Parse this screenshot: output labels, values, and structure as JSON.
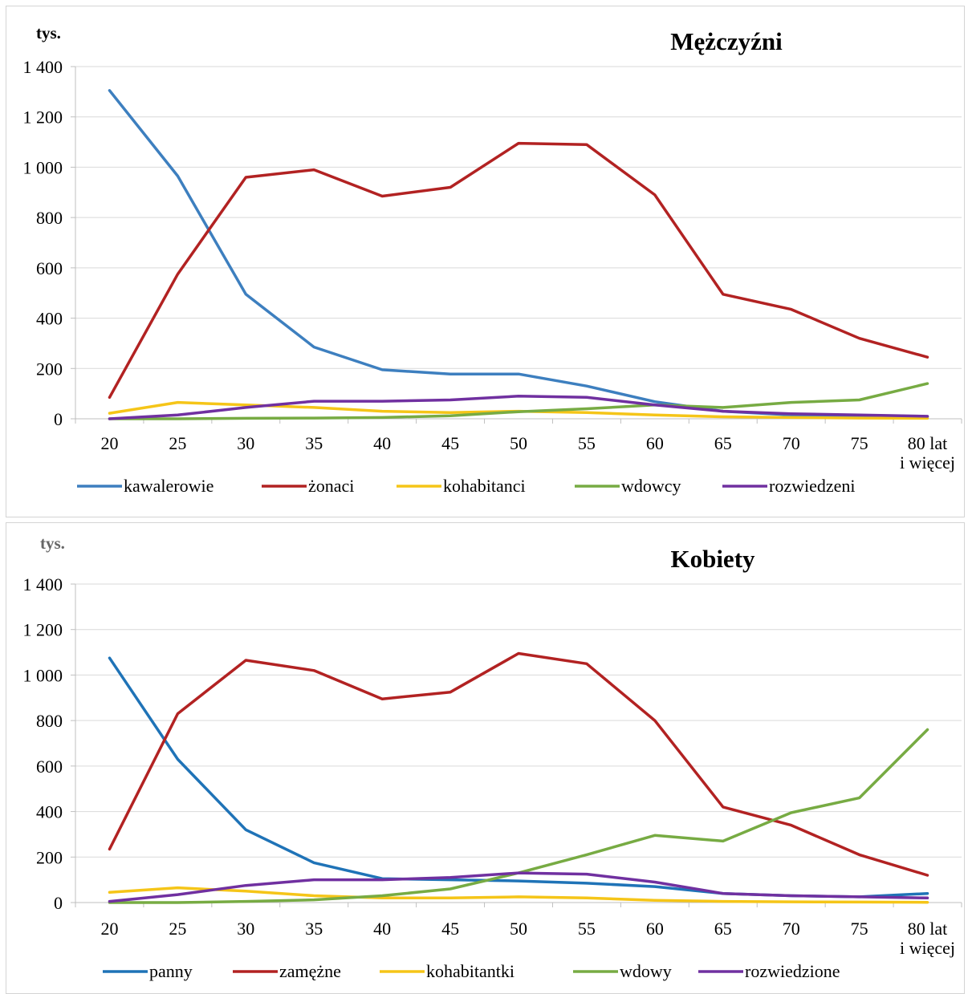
{
  "chart_data": [
    {
      "type": "line",
      "title": "Mężczyźni",
      "unit_label": "tys.",
      "ylim": [
        0,
        1400
      ],
      "yticks": [
        0,
        200,
        400,
        600,
        800,
        1000,
        1200,
        1400
      ],
      "ytick_labels": [
        "0",
        "200",
        "400",
        "600",
        "800",
        "1 000",
        "1 200",
        "1 400"
      ],
      "categories": [
        "20",
        "25",
        "30",
        "35",
        "40",
        "45",
        "50",
        "55",
        "60",
        "65",
        "70",
        "75",
        "80 lat i więcej"
      ],
      "category_lines": [
        [
          "20"
        ],
        [
          "25"
        ],
        [
          "30"
        ],
        [
          "35"
        ],
        [
          "40"
        ],
        [
          "45"
        ],
        [
          "50"
        ],
        [
          "55"
        ],
        [
          "60"
        ],
        [
          "65"
        ],
        [
          "70"
        ],
        [
          "75"
        ],
        [
          "80 lat",
          "i więcej"
        ]
      ],
      "grid": true,
      "legend_position": "bottom",
      "series": [
        {
          "name": "kawalerowie",
          "color": "#3D7FBF",
          "values": [
            1305,
            965,
            495,
            285,
            195,
            178,
            178,
            130,
            68,
            30,
            15,
            10,
            8
          ]
        },
        {
          "name": "żonaci",
          "color": "#B22222",
          "values": [
            85,
            575,
            960,
            990,
            885,
            920,
            1095,
            1090,
            890,
            495,
            435,
            320,
            245
          ]
        },
        {
          "name": "kohabitanci",
          "color": "#F5C518",
          "values": [
            22,
            65,
            55,
            45,
            30,
            25,
            30,
            25,
            15,
            8,
            5,
            3,
            2
          ]
        },
        {
          "name": "wdowcy",
          "color": "#77AB43",
          "values": [
            0,
            0,
            2,
            3,
            5,
            12,
            28,
            40,
            55,
            45,
            65,
            75,
            140
          ]
        },
        {
          "name": "rozwiedzeni",
          "color": "#7030A0",
          "values": [
            0,
            15,
            45,
            70,
            70,
            75,
            90,
            85,
            55,
            30,
            20,
            15,
            10
          ]
        }
      ]
    },
    {
      "type": "line",
      "title": "Kobiety",
      "unit_label": "tys.",
      "ylim": [
        0,
        1400
      ],
      "yticks": [
        0,
        200,
        400,
        600,
        800,
        1000,
        1200,
        1400
      ],
      "ytick_labels": [
        "0",
        "200",
        "400",
        "600",
        "800",
        "1 000",
        "1 200",
        "1 400"
      ],
      "categories": [
        "20",
        "25",
        "30",
        "35",
        "40",
        "45",
        "50",
        "55",
        "60",
        "65",
        "70",
        "75",
        "80 lat i więcej"
      ],
      "category_lines": [
        [
          "20"
        ],
        [
          "25"
        ],
        [
          "30"
        ],
        [
          "35"
        ],
        [
          "40"
        ],
        [
          "45"
        ],
        [
          "50"
        ],
        [
          "55"
        ],
        [
          "60"
        ],
        [
          "65"
        ],
        [
          "70"
        ],
        [
          "75"
        ],
        [
          "80 lat",
          "i więcej"
        ]
      ],
      "grid": true,
      "legend_position": "bottom",
      "series": [
        {
          "name": "panny",
          "color": "#1F73B7",
          "values": [
            1075,
            630,
            320,
            175,
            105,
            100,
            95,
            85,
            70,
            40,
            30,
            25,
            40
          ]
        },
        {
          "name": "zamężne",
          "color": "#B22222",
          "values": [
            235,
            830,
            1065,
            1020,
            895,
            925,
            1095,
            1050,
            800,
            420,
            340,
            210,
            120
          ]
        },
        {
          "name": "kohabitantki",
          "color": "#F5C518",
          "values": [
            45,
            65,
            50,
            30,
            20,
            20,
            25,
            20,
            10,
            5,
            3,
            2,
            1
          ]
        },
        {
          "name": "wdowy",
          "color": "#77AB43",
          "values": [
            0,
            0,
            5,
            12,
            30,
            60,
            130,
            210,
            295,
            270,
            395,
            460,
            760
          ]
        },
        {
          "name": "rozwiedzione",
          "color": "#7030A0",
          "values": [
            5,
            35,
            75,
            100,
            100,
            110,
            130,
            125,
            90,
            40,
            30,
            25,
            20
          ]
        }
      ]
    }
  ]
}
